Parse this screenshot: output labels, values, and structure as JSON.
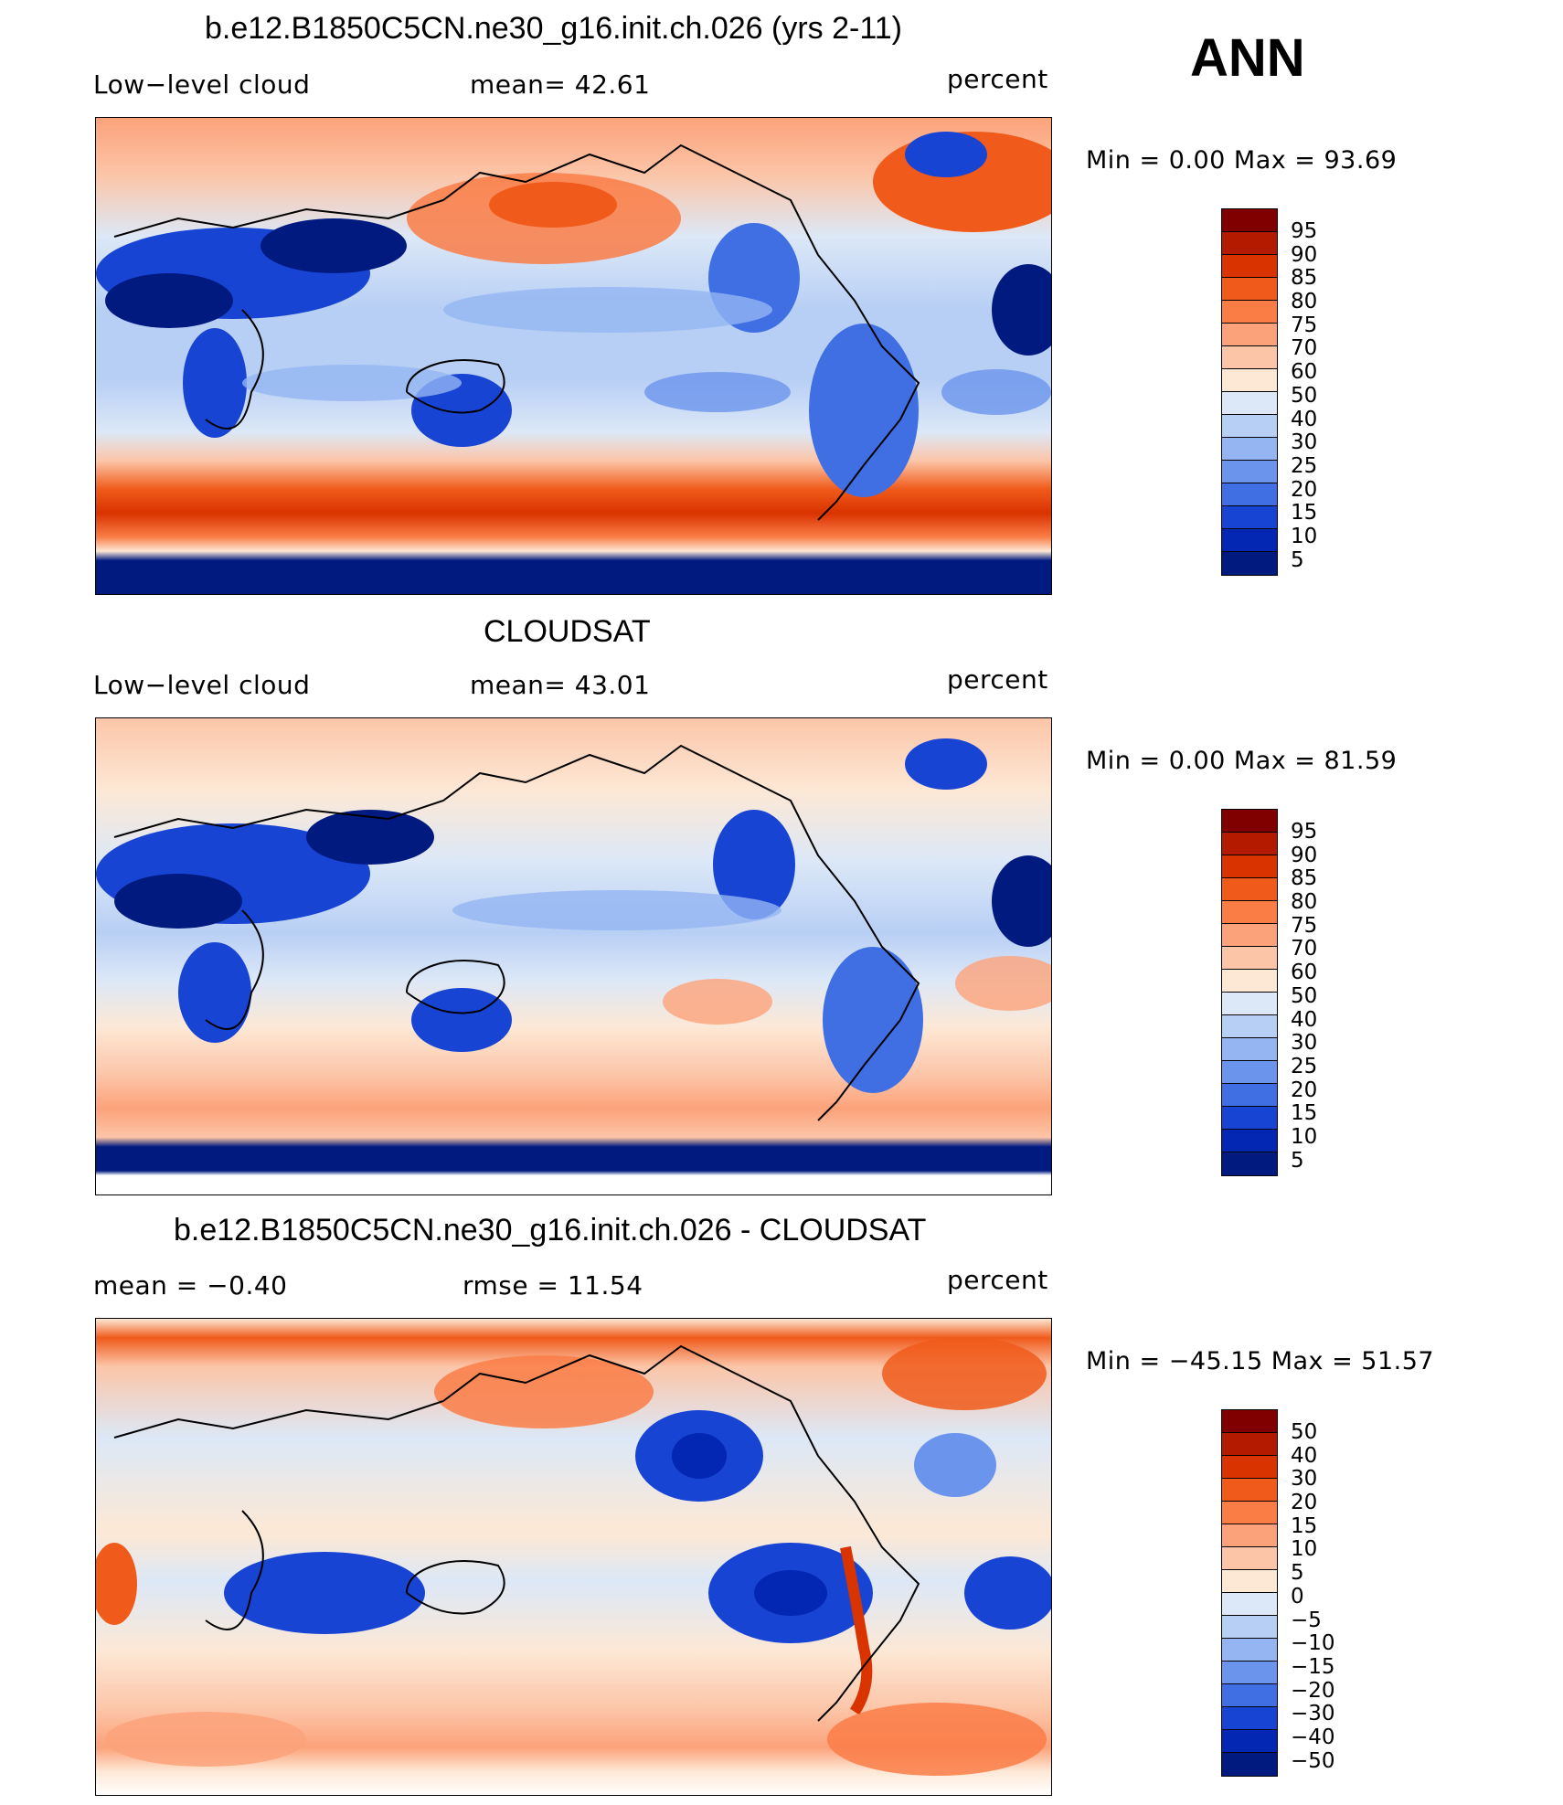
{
  "season": "ANN",
  "panels": [
    {
      "title": "b.e12.B1850C5CN.ne30_g16.init.ch.026 (yrs 2-11)",
      "left": "Low−level  cloud",
      "center": "mean=   42.61",
      "units": "percent",
      "minmax": "Min =    0.00  Max =   93.69",
      "colorbar": {
        "labels": [
          "95",
          "90",
          "85",
          "80",
          "75",
          "70",
          "60",
          "50",
          "40",
          "30",
          "25",
          "20",
          "15",
          "10",
          "5"
        ],
        "colors": [
          "#800000",
          "#b31a00",
          "#d93300",
          "#f05a1a",
          "#fa7d46",
          "#fca27a",
          "#fcc5a8",
          "#fde8d5",
          "#dce8f7",
          "#b8cff5",
          "#94b5f2",
          "#6b95ec",
          "#3f6fe3",
          "#1844d4",
          "#0326b3",
          "#001a80"
        ]
      }
    },
    {
      "title": "CLOUDSAT",
      "left": "Low−level  cloud",
      "center": "mean=   43.01",
      "units": "percent",
      "minmax": "Min =    0.00  Max =   81.59",
      "colorbar": {
        "labels": [
          "95",
          "90",
          "85",
          "80",
          "75",
          "70",
          "60",
          "50",
          "40",
          "30",
          "25",
          "20",
          "15",
          "10",
          "5"
        ],
        "colors": [
          "#800000",
          "#b31a00",
          "#d93300",
          "#f05a1a",
          "#fa7d46",
          "#fca27a",
          "#fcc5a8",
          "#fde8d5",
          "#dce8f7",
          "#b8cff5",
          "#94b5f2",
          "#6b95ec",
          "#3f6fe3",
          "#1844d4",
          "#0326b3",
          "#001a80"
        ]
      }
    },
    {
      "title": "b.e12.B1850C5CN.ne30_g16.init.ch.026 - CLOUDSAT",
      "left": "mean =   −0.40",
      "center": "rmse  =   11.54",
      "units": "percent",
      "minmax": "Min = −45.15  Max =   51.57",
      "colorbar": {
        "labels": [
          "50",
          "40",
          "30",
          "20",
          "15",
          "10",
          "5",
          "0",
          "−5",
          "−10",
          "−15",
          "−20",
          "−30",
          "−40",
          "−50"
        ],
        "colors": [
          "#800000",
          "#b31a00",
          "#d93300",
          "#f05a1a",
          "#fa7d46",
          "#fca27a",
          "#fcc5a8",
          "#fde8d5",
          "#dce8f7",
          "#b8cff5",
          "#94b5f2",
          "#6b95ec",
          "#3f6fe3",
          "#1844d4",
          "#0326b3",
          "#001a80"
        ]
      }
    }
  ],
  "palette": {
    "deep_red": "#b31a00",
    "red": "#e4491c",
    "orange": "#fca27a",
    "peach": "#fdd9c2",
    "pale_blue": "#dce8f7",
    "light_blue": "#b8cff5",
    "blue": "#6b95ec",
    "strong_blue": "#1844d4",
    "navy": "#001a80"
  }
}
